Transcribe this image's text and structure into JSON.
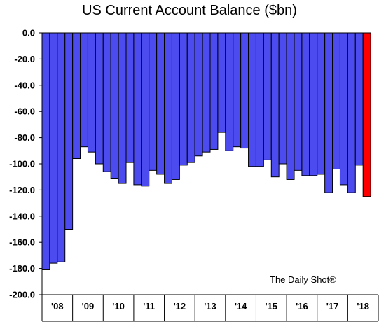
{
  "chart_data": {
    "type": "bar",
    "title": "US Current Account Balance ($bn)",
    "xlabel": "",
    "ylabel": "",
    "ylim": [
      -200,
      0
    ],
    "y_ticks": [
      "0.0",
      "-20.0",
      "-40.0",
      "-60.0",
      "-80.0",
      "-100.0",
      "-120.0",
      "-140.0",
      "-160.0",
      "-180.0",
      "-200.0"
    ],
    "x_year_labels": [
      "'08",
      "'09",
      "'10",
      "'11",
      "'12",
      "'13",
      "'14",
      "'15",
      "'16",
      "'17",
      "'18"
    ],
    "categories": [
      "2008Q1",
      "2008Q2",
      "2008Q3",
      "2008Q4",
      "2009Q1",
      "2009Q2",
      "2009Q3",
      "2009Q4",
      "2010Q1",
      "2010Q2",
      "2010Q3",
      "2010Q4",
      "2011Q1",
      "2011Q2",
      "2011Q3",
      "2011Q4",
      "2012Q1",
      "2012Q2",
      "2012Q3",
      "2012Q4",
      "2013Q1",
      "2013Q2",
      "2013Q3",
      "2013Q4",
      "2014Q1",
      "2014Q2",
      "2014Q3",
      "2014Q4",
      "2015Q1",
      "2015Q2",
      "2015Q3",
      "2015Q4",
      "2016Q1",
      "2016Q2",
      "2016Q3",
      "2016Q4",
      "2017Q1",
      "2017Q2",
      "2017Q3",
      "2017Q4",
      "2018Q1",
      "2018Q2",
      "2018Q3",
      "2018Q4"
    ],
    "values": [
      -181,
      -176,
      -175,
      -150,
      -96,
      -87,
      -91,
      -100,
      -106,
      -111,
      -115,
      -99,
      -116,
      -117,
      -105,
      -108,
      -115,
      -112,
      -101,
      -99,
      -94,
      -91,
      -89,
      -76,
      -90,
      -87,
      -88,
      -102,
      -102,
      -97,
      -110,
      -100,
      -112,
      -105,
      -109,
      -109,
      -108,
      -122,
      -104,
      -116,
      -122,
      -101,
      -125,
      0
    ],
    "highlight_index": 42,
    "bar_color": "#4b4bf0",
    "highlight_color": "#ff0000",
    "grid": false,
    "legend": "none"
  },
  "watermark": "The Daily Shot®"
}
